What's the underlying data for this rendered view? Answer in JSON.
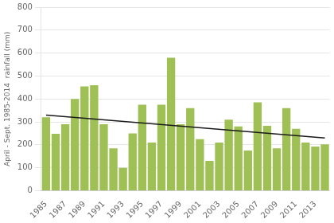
{
  "chart_data": {
    "type": "bar",
    "ylabel": "April - Sept. 1985-2014  rainfall (mm)",
    "categories": [
      "1985",
      null,
      "1987",
      null,
      "1989",
      null,
      "1991",
      null,
      "1993",
      null,
      "1995",
      null,
      "1997",
      null,
      "1999",
      null,
      "2001",
      null,
      "2003",
      null,
      "2005",
      null,
      "2007",
      null,
      "2009",
      null,
      "2011",
      null,
      "2013",
      null
    ],
    "series": [
      {
        "type": "bar",
        "color": "#9fc054",
        "values": [
          320,
          248,
          290,
          400,
          455,
          460,
          290,
          185,
          100,
          250,
          375,
          210,
          375,
          580,
          290,
          360,
          225,
          130,
          210,
          310,
          280,
          175,
          385,
          283,
          185,
          360,
          270,
          210,
          193,
          202
        ]
      },
      {
        "type": "line",
        "color": "#1a1a1a",
        "values": [
          330,
          null,
          null,
          null,
          null,
          null,
          null,
          null,
          null,
          null,
          null,
          null,
          null,
          null,
          null,
          null,
          null,
          null,
          null,
          null,
          null,
          null,
          null,
          null,
          null,
          null,
          null,
          null,
          null,
          230
        ]
      }
    ],
    "ylim": [
      0,
      800
    ],
    "yticks": [
      0,
      100,
      200,
      300,
      400,
      500,
      600,
      700,
      800
    ],
    "grid": true
  }
}
